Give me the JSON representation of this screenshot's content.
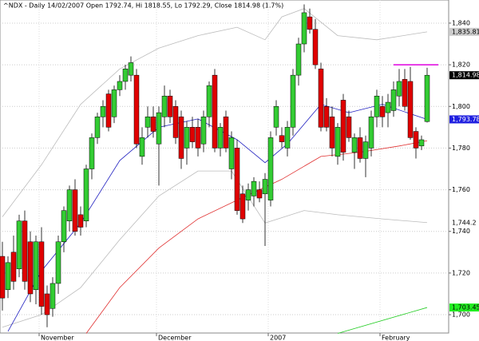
{
  "chart_data": {
    "type": "candlestick",
    "title": "^NDX - Daily 14/02/2007 Open 1792.74, Hi 1818.55, Lo 1792.29, Close 1814.98 (1.7%)",
    "categories": [
      null,
      null,
      null,
      null,
      null,
      null,
      null,
      "November",
      null,
      null,
      null,
      null,
      null,
      null,
      null,
      null,
      null,
      null,
      null,
      null,
      null,
      null,
      null,
      null,
      null,
      null,
      null,
      null,
      "December",
      null,
      null,
      null,
      null,
      null,
      null,
      null,
      null,
      null,
      null,
      null,
      null,
      null,
      null,
      null,
      null,
      null,
      null,
      null,
      "2007",
      null,
      null,
      null,
      null,
      null,
      null,
      null,
      null,
      null,
      null,
      null,
      null,
      null,
      null,
      null,
      null,
      null,
      null,
      null,
      "February",
      null,
      null,
      null,
      null,
      null,
      null,
      null,
      null
    ],
    "ohlc": [
      [
        1728,
        1735,
        1702,
        1708
      ],
      [
        1712,
        1728,
        1708,
        1725
      ],
      [
        1730,
        1738,
        1712,
        1716
      ],
      [
        1722,
        1748,
        1718,
        1745
      ],
      [
        1745,
        1750,
        1712,
        1716
      ],
      [
        1735,
        1740,
        1706,
        1710
      ],
      [
        1712,
        1738,
        1705,
        1735
      ],
      [
        1735,
        1742,
        1700,
        1704
      ],
      [
        1710,
        1714,
        1694,
        1700
      ],
      [
        1703,
        1718,
        1699,
        1715
      ],
      [
        1715,
        1738,
        1710,
        1735
      ],
      [
        1735,
        1752,
        1730,
        1750
      ],
      [
        1745,
        1762,
        1740,
        1760
      ],
      [
        1760,
        1765,
        1738,
        1740
      ],
      [
        1748,
        1752,
        1738,
        1742
      ],
      [
        1745,
        1772,
        1742,
        1770
      ],
      [
        1770,
        1787,
        1765,
        1785
      ],
      [
        1785,
        1797,
        1782,
        1795
      ],
      [
        1795,
        1803,
        1790,
        1800
      ],
      [
        1806,
        1808,
        1788,
        1790
      ],
      [
        1795,
        1810,
        1792,
        1808
      ],
      [
        1808,
        1815,
        1805,
        1812
      ],
      [
        1812,
        1820,
        1808,
        1818
      ],
      [
        1815,
        1824,
        1812,
        1821
      ],
      [
        1815,
        1818,
        1780,
        1782
      ],
      [
        1776,
        1790,
        1772,
        1785
      ],
      [
        1790,
        1800,
        1785,
        1795
      ],
      [
        1795,
        1800,
        1785,
        1788
      ],
      [
        1782,
        1800,
        1762,
        1797
      ],
      [
        1795,
        1810,
        1790,
        1805
      ],
      [
        1805,
        1808,
        1792,
        1795
      ],
      [
        1800,
        1803,
        1782,
        1785
      ],
      [
        1795,
        1798,
        1770,
        1775
      ],
      [
        1780,
        1793,
        1772,
        1790
      ],
      [
        1790,
        1795,
        1780,
        1783
      ],
      [
        1790,
        1794,
        1776,
        1780
      ],
      [
        1782,
        1798,
        1778,
        1795
      ],
      [
        1795,
        1812,
        1790,
        1810
      ],
      [
        1815,
        1818,
        1778,
        1780
      ],
      [
        1780,
        1792,
        1776,
        1790
      ],
      [
        1795,
        1798,
        1778,
        1780
      ],
      [
        1770,
        1788,
        1765,
        1785
      ],
      [
        1780,
        1784,
        1748,
        1750
      ],
      [
        1758,
        1762,
        1744,
        1746
      ],
      [
        1755,
        1763,
        1750,
        1760
      ],
      [
        1757,
        1766,
        1752,
        1764
      ],
      [
        1760,
        1764,
        1754,
        1756
      ],
      [
        1758,
        1768,
        1733,
        1765
      ],
      [
        1755,
        1788,
        1752,
        1785
      ],
      [
        1790,
        1803,
        1786,
        1800
      ],
      [
        1786,
        1790,
        1780,
        1783
      ],
      [
        1780,
        1793,
        1776,
        1790
      ],
      [
        1790,
        1818,
        1786,
        1815
      ],
      [
        1815,
        1833,
        1810,
        1830
      ],
      [
        1830,
        1849,
        1826,
        1845
      ],
      [
        1843,
        1847,
        1835,
        1837
      ],
      [
        1837,
        1842,
        1818,
        1820
      ],
      [
        1818,
        1821,
        1788,
        1790
      ],
      [
        1800,
        1804,
        1788,
        1790
      ],
      [
        1795,
        1800,
        1776,
        1780
      ],
      [
        1776,
        1792,
        1772,
        1790
      ],
      [
        1803,
        1806,
        1774,
        1778
      ],
      [
        1795,
        1798,
        1783,
        1785
      ],
      [
        1778,
        1787,
        1770,
        1785
      ],
      [
        1785,
        1790,
        1773,
        1775
      ],
      [
        1775,
        1786,
        1766,
        1783
      ],
      [
        1780,
        1798,
        1776,
        1795
      ],
      [
        1795,
        1808,
        1790,
        1805
      ],
      [
        1800,
        1805,
        1790,
        1795
      ],
      [
        1797,
        1806,
        1790,
        1802
      ],
      [
        1798,
        1812,
        1795,
        1808
      ],
      [
        1805,
        1818,
        1800,
        1812
      ],
      [
        1813,
        1818,
        1798,
        1800
      ],
      [
        1812,
        1819,
        1784,
        1785
      ],
      [
        1788,
        1790,
        1775,
        1780
      ],
      [
        1781,
        1786,
        1779,
        1784
      ],
      [
        1792.74,
        1818.55,
        1792.29,
        1814.98
      ]
    ],
    "up_color": "#33cc33",
    "down_color": "#e00000",
    "close_label": "1,814.98",
    "overlays": [
      {
        "color": "#bbbbbb",
        "label_color": "#cccccc",
        "text_color": "#000000",
        "x": [
          0,
          7,
          14,
          21,
          28,
          35,
          42,
          47,
          50,
          54,
          60,
          67,
          76
        ],
        "values": [
          1747,
          1772,
          1801,
          1818,
          1828,
          1834,
          1838,
          1832,
          1843,
          1847,
          1834,
          1832,
          1835.81
        ],
        "end_label": "1,835.81"
      },
      {
        "color": "#bbbbbb",
        "label_color": "#ffffff",
        "text_color": "#000000",
        "x": [
          0,
          7,
          14,
          21,
          28,
          35,
          41,
          47,
          54,
          60,
          68,
          76
        ],
        "values": [
          1694,
          1700,
          1713,
          1736,
          1757,
          1769,
          1769,
          1744,
          1750,
          1748,
          1746,
          1744.2
        ],
        "end_label": "1,744.2"
      },
      {
        "color": "#2020c0",
        "label_color": "#2020e0",
        "text_color": "#ffffff",
        "x": [
          1,
          7,
          14,
          21,
          28,
          35,
          42,
          47,
          51,
          57,
          62,
          68,
          76
        ],
        "values": [
          1692,
          1721,
          1744,
          1774,
          1790,
          1794,
          1784,
          1773,
          1782,
          1801,
          1797,
          1801,
          1793.78
        ],
        "end_label": "1,793.78"
      },
      {
        "color": "#e03030",
        "x": [
          15,
          21,
          28,
          35,
          42,
          50,
          57,
          64,
          71,
          76
        ],
        "values": [
          1691,
          1713,
          1732,
          1746,
          1755,
          1765,
          1776,
          1778,
          1781,
          1783.5
        ]
      },
      {
        "color": "#22cc22",
        "label_color": "#22ee22",
        "text_color": "#000000",
        "x": [
          60,
          76
        ],
        "values": [
          1691,
          1703.45
        ],
        "end_label": "1,703.45"
      }
    ],
    "resistance": {
      "value": 1820,
      "color": "#e000e0",
      "from": 70,
      "to": 78
    },
    "ylim": [
      1691.2,
      1851.1
    ],
    "yticks": [
      {
        "value": 1700,
        "label": "1,700"
      },
      {
        "value": 1720,
        "label": "1,720"
      },
      {
        "value": 1740,
        "label": "1,740"
      },
      {
        "value": 1760,
        "label": "1,760"
      },
      {
        "value": 1780,
        "label": "1,780"
      },
      {
        "value": 1800,
        "label": "1,800"
      },
      {
        "value": 1820,
        "label": "1,820"
      },
      {
        "value": 1840,
        "label": "1,840"
      }
    ],
    "grid": true
  }
}
